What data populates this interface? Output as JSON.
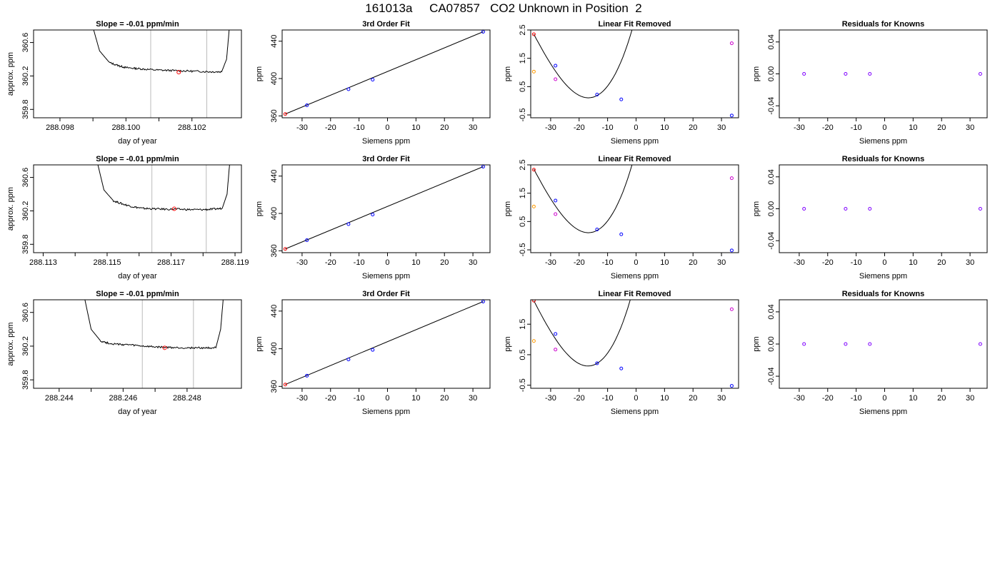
{
  "page": {
    "title": "161013a     CA07857   CO2 Unknown in Position  2"
  },
  "rows": [
    {
      "slope_panel": {
        "title": "Slope =  -0.01  ppm/min",
        "xlabel": "day of year",
        "ylabel": "approx. ppm",
        "xlim": [
          288.0972,
          288.1035
        ],
        "ylim": [
          359.7,
          360.75
        ],
        "xticks": [
          "288.098",
          "288.100",
          "288.102"
        ],
        "xtick_values": [
          288.098,
          288.1,
          288.102
        ],
        "yticks": [
          "359.8",
          "360.2",
          "360.6"
        ],
        "ytick_values": [
          359.8,
          360.2,
          360.6
        ],
        "vlines": [
          288.10075,
          288.10245
        ],
        "trace_x": [
          288.09895,
          288.0992,
          288.0995,
          288.0998,
          288.1,
          288.1003,
          288.1006,
          288.101,
          288.1014,
          288.1018,
          288.1022,
          288.1026,
          288.1029,
          288.10305,
          288.10315
        ],
        "trace_y": [
          360.85,
          360.5,
          360.36,
          360.32,
          360.3,
          360.29,
          360.28,
          360.27,
          360.265,
          360.26,
          360.255,
          360.25,
          360.25,
          360.4,
          360.85
        ],
        "marker": [
          288.1016,
          360.245
        ]
      },
      "fit_panel": {
        "title": "3rd Order Fit",
        "xlabel": "Siemens ppm",
        "ylabel": "ppm",
        "xlim": [
          -37,
          36
        ],
        "ylim": [
          358,
          452
        ],
        "yticks": [
          "360",
          "400",
          "440"
        ],
        "ytick_values": [
          360,
          400,
          440
        ],
        "points": [
          [
            -35.9,
            362.0
          ],
          [
            -28.3,
            371.4
          ],
          [
            -13.7,
            388.6
          ],
          [
            -5.2,
            398.8
          ],
          [
            33.6,
            450.1
          ]
        ],
        "point_colors": [
          "#ff0000",
          "#0000ff",
          "#0000ff",
          "#0000ff",
          "#0000ff"
        ]
      },
      "linear_panel": {
        "title": "Linear Fit Removed",
        "xlabel": "Siemens ppm",
        "ylabel": "ppm",
        "xlim": [
          -37,
          36
        ],
        "ylim": [
          -0.6,
          2.5
        ],
        "yticks": [
          "-0.5",
          "0.5",
          "1.5",
          "2.5"
        ],
        "ytick_values": [
          -0.5,
          0.5,
          1.5,
          2.5
        ],
        "curve": [
          2.35,
          -0.19,
          0.0015,
          0.00012
        ],
        "points": [
          [
            -35.9,
            2.35
          ],
          [
            -28.3,
            1.24
          ],
          [
            -13.7,
            0.22
          ],
          [
            -5.2,
            0.05
          ],
          [
            33.6,
            -0.52
          ],
          [
            -35.9,
            1.03
          ],
          [
            -28.3,
            0.76
          ],
          [
            33.6,
            2.03
          ]
        ],
        "point_colors": [
          "#ff0000",
          "#0000ff",
          "#0000ff",
          "#0000ff",
          "#0000ff",
          "#ff9900",
          "#cc00cc",
          "#cc00cc"
        ]
      },
      "resid_panel": {
        "title": "Residuals for Knowns",
        "xlabel": "Siemens ppm",
        "ylabel": "ppm",
        "xlim": [
          -37,
          36
        ],
        "ylim": [
          -0.055,
          0.055
        ],
        "yticks": [
          "-0.04",
          "0.00",
          "0.04"
        ],
        "ytick_values": [
          -0.04,
          0.0,
          0.04
        ],
        "points": [
          [
            -28.3,
            0.0
          ],
          [
            -13.7,
            0.0
          ],
          [
            -5.2,
            0.0
          ],
          [
            33.6,
            0.0
          ]
        ]
      }
    },
    {
      "slope_panel": {
        "title": "Slope =  -0.01  ppm/min",
        "xlabel": "day of year",
        "ylabel": "approx. ppm",
        "xlim": [
          288.1127,
          288.1192
        ],
        "ylim": [
          359.7,
          360.75
        ],
        "xticks": [
          "288.113",
          "288.115",
          "288.117",
          "288.119"
        ],
        "xtick_values": [
          288.113,
          288.115,
          288.117,
          288.119
        ],
        "yticks": [
          "359.8",
          "360.2",
          "360.6"
        ],
        "ytick_values": [
          359.8,
          360.2,
          360.6
        ],
        "vlines": [
          288.1164,
          288.1181
        ],
        "trace_x": [
          288.11465,
          288.1149,
          288.1152,
          288.1155,
          288.1158,
          288.1161,
          288.1164,
          288.1168,
          288.1172,
          288.1176,
          288.118,
          288.1183,
          288.1186,
          288.11875,
          288.11885
        ],
        "trace_y": [
          360.85,
          360.45,
          360.32,
          360.28,
          360.25,
          360.23,
          360.225,
          360.22,
          360.22,
          360.215,
          360.215,
          360.22,
          360.23,
          360.4,
          360.85
        ],
        "marker": [
          288.1171,
          360.225
        ]
      },
      "fit_panel": {
        "title": "3rd Order Fit",
        "xlabel": "Siemens ppm",
        "ylabel": "ppm",
        "xlim": [
          -37,
          36
        ],
        "ylim": [
          358,
          452
        ],
        "yticks": [
          "360",
          "400",
          "440"
        ],
        "ytick_values": [
          360,
          400,
          440
        ],
        "points": [
          [
            -35.9,
            362.0
          ],
          [
            -28.3,
            371.4
          ],
          [
            -13.7,
            388.6
          ],
          [
            -5.2,
            398.8
          ],
          [
            33.6,
            450.1
          ]
        ],
        "point_colors": [
          "#ff0000",
          "#0000ff",
          "#0000ff",
          "#0000ff",
          "#0000ff"
        ]
      },
      "linear_panel": {
        "title": "Linear Fit Removed",
        "xlabel": "Siemens ppm",
        "ylabel": "ppm",
        "xlim": [
          -37,
          36
        ],
        "ylim": [
          -0.6,
          2.5
        ],
        "yticks": [
          "-0.5",
          "0.5",
          "1.5",
          "2.5"
        ],
        "ytick_values": [
          -0.5,
          0.5,
          1.5,
          2.5
        ],
        "curve": [
          2.35,
          -0.19,
          0.0015,
          0.00012
        ],
        "points": [
          [
            -35.9,
            2.33
          ],
          [
            -28.3,
            1.24
          ],
          [
            -13.7,
            0.22
          ],
          [
            -5.2,
            0.05
          ],
          [
            33.6,
            -0.52
          ],
          [
            -35.9,
            1.03
          ],
          [
            -28.3,
            0.76
          ],
          [
            33.6,
            2.03
          ]
        ],
        "point_colors": [
          "#ff0000",
          "#0000ff",
          "#0000ff",
          "#0000ff",
          "#0000ff",
          "#ff9900",
          "#cc00cc",
          "#cc00cc"
        ]
      },
      "resid_panel": {
        "title": "Residuals for Knowns",
        "xlabel": "Siemens ppm",
        "ylabel": "ppm",
        "xlim": [
          -37,
          36
        ],
        "ylim": [
          -0.055,
          0.055
        ],
        "yticks": [
          "-0.04",
          "0.00",
          "0.04"
        ],
        "ytick_values": [
          -0.04,
          0.0,
          0.04
        ],
        "points": [
          [
            -28.3,
            0.0
          ],
          [
            -13.7,
            0.0
          ],
          [
            -5.2,
            0.0
          ],
          [
            33.6,
            0.0
          ]
        ]
      }
    },
    {
      "slope_panel": {
        "title": "Slope =  -0.01  ppm/min",
        "xlabel": "day of year",
        "ylabel": "approx. ppm",
        "xlim": [
          288.2432,
          288.2497
        ],
        "ylim": [
          359.7,
          360.75
        ],
        "xticks": [
          "288.244",
          "288.246",
          "288.248"
        ],
        "xtick_values": [
          288.244,
          288.246,
          288.248
        ],
        "yticks": [
          "359.8",
          "360.2",
          "360.6"
        ],
        "ytick_values": [
          359.8,
          360.2,
          360.6
        ],
        "vlines": [
          288.2466,
          288.2482
        ],
        "trace_x": [
          288.24475,
          288.245,
          288.2453,
          288.2456,
          288.2459,
          288.2462,
          288.2466,
          288.247,
          288.2474,
          288.2478,
          288.2482,
          288.2486,
          288.2489,
          288.24905,
          288.24915
        ],
        "trace_y": [
          360.85,
          360.4,
          360.26,
          360.23,
          360.22,
          360.215,
          360.2,
          360.19,
          360.185,
          360.18,
          360.18,
          360.18,
          360.18,
          360.4,
          360.85
        ],
        "marker": [
          288.2473,
          360.18
        ]
      },
      "fit_panel": {
        "title": "3rd Order Fit",
        "xlabel": "Siemens ppm",
        "ylabel": "ppm",
        "xlim": [
          -37,
          36
        ],
        "ylim": [
          358,
          452
        ],
        "yticks": [
          "360",
          "400",
          "440"
        ],
        "ytick_values": [
          360,
          400,
          440
        ],
        "points": [
          [
            -35.9,
            362.0
          ],
          [
            -28.3,
            371.4
          ],
          [
            -13.7,
            388.6
          ],
          [
            -5.2,
            398.8
          ],
          [
            33.6,
            450.1
          ]
        ],
        "point_colors": [
          "#ff0000",
          "#0000ff",
          "#0000ff",
          "#0000ff",
          "#0000ff"
        ]
      },
      "linear_panel": {
        "title": "Linear Fit Removed",
        "xlabel": "Siemens ppm",
        "ylabel": "ppm",
        "xlim": [
          -37,
          36
        ],
        "ylim": [
          -0.6,
          2.3
        ],
        "yticks": [
          "-0.5",
          "0.5",
          "1.5"
        ],
        "ytick_values": [
          -0.5,
          0.5,
          1.5
        ],
        "curve": [
          2.27,
          -0.183,
          0.0015,
          0.000116
        ],
        "points": [
          [
            -35.9,
            2.27
          ],
          [
            -28.3,
            1.18
          ],
          [
            -13.7,
            0.22
          ],
          [
            -5.2,
            0.05
          ],
          [
            33.6,
            -0.52
          ],
          [
            -35.9,
            0.95
          ],
          [
            -28.3,
            0.67
          ],
          [
            33.6,
            1.99
          ]
        ],
        "point_colors": [
          "#ff0000",
          "#0000ff",
          "#0000ff",
          "#0000ff",
          "#0000ff",
          "#ff9900",
          "#cc00cc",
          "#cc00cc"
        ]
      },
      "resid_panel": {
        "title": "Residuals for Knowns",
        "xlabel": "Siemens ppm",
        "ylabel": "ppm",
        "xlim": [
          -37,
          36
        ],
        "ylim": [
          -0.055,
          0.055
        ],
        "yticks": [
          "-0.04",
          "0.00",
          "0.04"
        ],
        "ytick_values": [
          -0.04,
          0.0,
          0.04
        ],
        "points": [
          [
            -28.3,
            0.0
          ],
          [
            -13.7,
            0.0
          ],
          [
            -5.2,
            0.0
          ],
          [
            33.6,
            0.0
          ]
        ]
      }
    }
  ],
  "siemens_xticks": [
    "-30",
    "-20",
    "-10",
    "0",
    "10",
    "20",
    "30"
  ],
  "siemens_xtick_values": [
    -30,
    -20,
    -10,
    0,
    10,
    20,
    30
  ],
  "colors": {
    "trace": "#000000",
    "vline": "#bbbbbb",
    "known": "#0000ff",
    "resid": "#7f00ff"
  },
  "chart_data": [
    {
      "type": "line",
      "title": "Slope =  -0.01  ppm/min",
      "xlabel": "day of year",
      "ylabel": "approx. ppm",
      "xlim": [
        288.0972,
        288.1035
      ],
      "ylim": [
        359.7,
        360.75
      ]
    },
    {
      "type": "scatter",
      "title": "3rd Order Fit",
      "xlabel": "Siemens ppm",
      "ylabel": "ppm",
      "x": [
        -35.9,
        -28.3,
        -13.7,
        -5.2,
        33.6
      ],
      "y": [
        362.0,
        371.4,
        388.6,
        398.8,
        450.1
      ]
    },
    {
      "type": "scatter",
      "title": "Linear Fit Removed",
      "xlabel": "Siemens ppm",
      "ylabel": "ppm",
      "x": [
        -35.9,
        -28.3,
        -13.7,
        -5.2,
        33.6
      ],
      "y": [
        2.35,
        1.24,
        0.22,
        0.05,
        -0.52
      ]
    },
    {
      "type": "scatter",
      "title": "Residuals for Knowns",
      "xlabel": "Siemens ppm",
      "ylabel": "ppm",
      "x": [
        -28.3,
        -13.7,
        -5.2,
        33.6
      ],
      "y": [
        0.0,
        0.0,
        0.0,
        0.0
      ]
    }
  ]
}
